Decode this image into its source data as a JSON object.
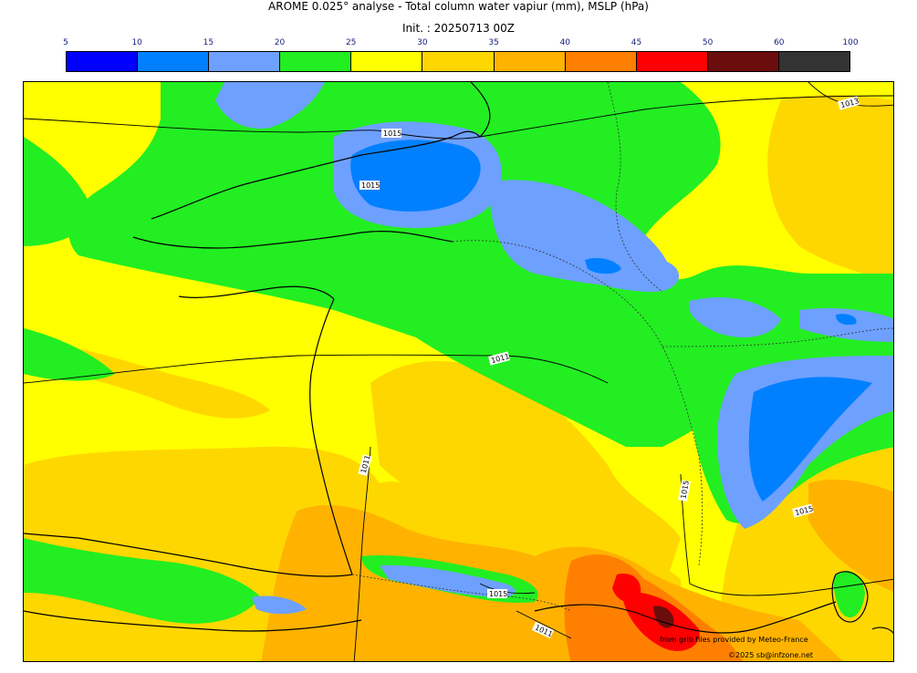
{
  "header": {
    "title": "AROME 0.025° analyse - Total column water vapiur (mm), MSLP (hPa)",
    "init": "Init. : 20250713 00Z"
  },
  "colorbar": {
    "ticks": [
      "5",
      "10",
      "15",
      "20",
      "25",
      "30",
      "35",
      "40",
      "45",
      "50",
      "60",
      "100"
    ],
    "colors": [
      "#0000ff",
      "#0080ff",
      "#6ea0ff",
      "#22ee22",
      "#ffff00",
      "#ffd700",
      "#ffb300",
      "#ff8000",
      "#ff0000",
      "#6b0d0d",
      "#333333"
    ]
  },
  "isobars": {
    "labels": [
      "1015",
      "1013",
      "1011",
      "1011",
      "1015",
      "1015",
      "1015",
      "1011",
      "1015"
    ]
  },
  "credits": {
    "source": "from grib files provided by Meteo-France",
    "copyright": "©2025 sb@infzone.net"
  }
}
